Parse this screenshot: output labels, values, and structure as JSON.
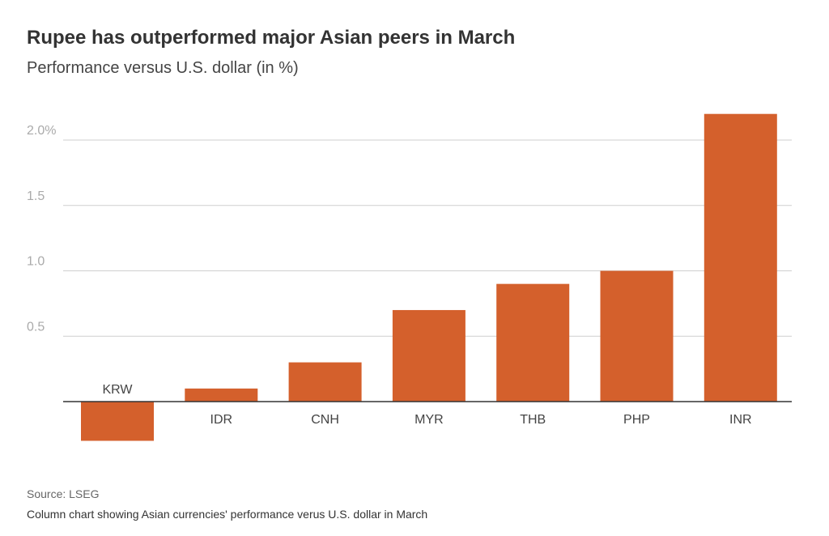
{
  "title": "Rupee has outperformed major Asian peers in March",
  "subtitle": "Performance versus U.S. dollar (in %)",
  "source": "Source: LSEG",
  "caption": "Column chart showing Asian currencies' performance verus U.S. dollar in March",
  "colors": {
    "bar": "#d4602c",
    "grid": "#cfcfcf",
    "axis": "#333333",
    "tick": "#aaaaaa"
  },
  "chart_data": {
    "type": "bar",
    "title": "Rupee has outperformed major Asian peers in March",
    "xlabel": "",
    "ylabel": "Performance versus U.S. dollar (in %)",
    "categories": [
      "KRW",
      "IDR",
      "CNH",
      "MYR",
      "THB",
      "PHP",
      "INR"
    ],
    "values": [
      -0.3,
      0.1,
      0.3,
      0.7,
      0.9,
      1.0,
      2.2
    ],
    "ylim": [
      -0.3,
      2.2
    ],
    "yticks": [
      0.5,
      1.0,
      1.5,
      2.0
    ],
    "ytick_labels": [
      "0.5",
      "1.0",
      "1.5",
      "2.0%"
    ],
    "grid": true
  }
}
